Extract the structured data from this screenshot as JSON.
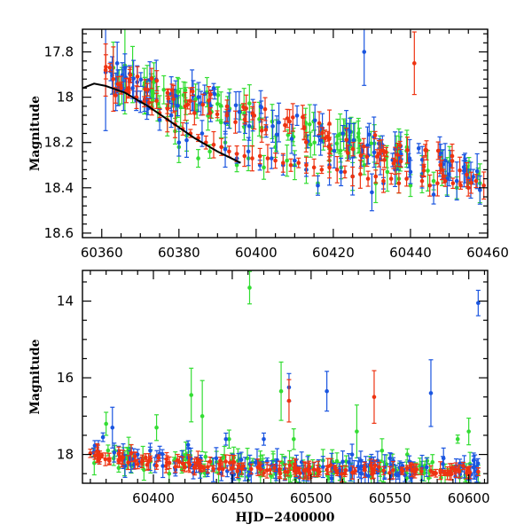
{
  "chart_data": [
    {
      "type": "scatter",
      "xlabel": "",
      "ylabel": "Magnitude",
      "xlim": [
        60355,
        60460
      ],
      "ylim": [
        18.62,
        17.7
      ],
      "y_inverted": true,
      "x_ticks": [
        "60360",
        "60380",
        "60400",
        "60420",
        "60440",
        "60460"
      ],
      "y_ticks": [
        "17.8",
        "18",
        "18.2",
        "18.4",
        "18.6"
      ],
      "colors": {
        "green": "#33dd33",
        "blue": "#1a55e0",
        "red": "#ee3311",
        "model": "#000000"
      },
      "series": [
        {
          "color": "green",
          "x": [
            60363,
            60366,
            60368,
            60371,
            60373,
            60375,
            60377,
            60379,
            60380,
            60382,
            60385,
            60388,
            60390,
            60392,
            60395,
            60398,
            60402,
            60405,
            60408,
            60410,
            60413,
            60416,
            60419,
            60422,
            60425,
            60428,
            60431,
            60434,
            60437,
            60440,
            60443,
            60446,
            60449,
            60452,
            60455,
            60458
          ],
          "y": [
            17.87,
            17.86,
            17.9,
            17.95,
            18.0,
            18.05,
            18.1,
            18.15,
            18.22,
            18.17,
            18.27,
            18.24,
            18.03,
            18.2,
            18.3,
            18.27,
            18.31,
            18.22,
            18.28,
            18.3,
            18.32,
            18.38,
            18.28,
            18.31,
            18.35,
            18.3,
            18.38,
            18.33,
            18.36,
            18.39,
            18.34,
            18.37,
            18.35,
            18.4,
            18.33,
            18.38
          ]
        },
        {
          "color": "blue",
          "x": [
            60361,
            60364,
            60366,
            60368,
            60370,
            60372,
            60375,
            60378,
            60380,
            60382,
            60386,
            60389,
            60392,
            60395,
            60398,
            60401,
            60404,
            60407,
            60410,
            60413,
            60416,
            60419,
            60422,
            60425,
            60428,
            60430,
            60433,
            60436,
            60440,
            60443,
            60446,
            60449,
            60452,
            60455,
            60458
          ],
          "y": [
            17.89,
            17.85,
            17.87,
            17.96,
            18.02,
            18.05,
            18.1,
            18.08,
            18.2,
            18.19,
            18.16,
            17.96,
            18.23,
            18.27,
            18.24,
            18.3,
            18.27,
            18.3,
            18.28,
            18.32,
            18.39,
            18.3,
            18.33,
            18.35,
            17.8,
            18.42,
            18.38,
            18.32,
            18.33,
            18.35,
            18.43,
            18.28,
            18.37,
            18.36,
            18.41
          ]
        },
        {
          "color": "red",
          "x": [
            60361,
            60363,
            60365,
            60367,
            60369,
            60371,
            60373,
            60375,
            60377,
            60379,
            60381,
            60383,
            60385,
            60387,
            60389,
            60391,
            60393,
            60395,
            60397,
            60399,
            60401,
            60403,
            60405,
            60407,
            60409,
            60411,
            60413,
            60415,
            60417,
            60419,
            60421,
            60423,
            60425,
            60427,
            60429,
            60431,
            60433,
            60435,
            60437,
            60439,
            60441,
            60443,
            60445,
            60447,
            60449,
            60451,
            60453,
            60455,
            60457,
            60459
          ],
          "y": [
            17.88,
            17.92,
            17.96,
            17.98,
            18.0,
            18.02,
            18.05,
            18.07,
            18.1,
            18.12,
            18.14,
            18.16,
            18.18,
            18.2,
            18.21,
            18.22,
            18.24,
            18.25,
            18.26,
            18.27,
            18.26,
            18.27,
            18.28,
            18.29,
            18.3,
            18.29,
            18.3,
            18.31,
            18.32,
            18.31,
            18.32,
            18.33,
            18.35,
            18.34,
            18.36,
            18.35,
            18.37,
            18.36,
            18.38,
            18.36,
            17.85,
            18.37,
            18.39,
            18.38,
            18.37,
            18.38,
            18.39,
            18.4,
            18.37,
            18.39
          ]
        },
        {
          "color": "model",
          "type": "line",
          "x": [
            60355,
            60358,
            60361,
            60366,
            60372,
            60378,
            60384,
            60390,
            60396
          ],
          "y": [
            17.96,
            17.94,
            17.95,
            17.98,
            18.04,
            18.11,
            18.18,
            18.24,
            18.29
          ]
        }
      ]
    },
    {
      "type": "scatter",
      "xlabel": "HJD−2400000",
      "ylabel": "Magnitude",
      "xlim": [
        60355,
        60612
      ],
      "ylim": [
        18.75,
        13.2
      ],
      "y_inverted": true,
      "x_ticks": [
        "60400",
        "60450",
        "60500",
        "60550",
        "60600"
      ],
      "y_ticks": [
        "14",
        "16",
        "18"
      ],
      "colors": {
        "green": "#33dd33",
        "blue": "#1a55e0",
        "red": "#ee3311"
      },
      "series": [
        {
          "color": "green",
          "x": [
            60362,
            60370,
            60378,
            60386,
            60394,
            60402,
            60410,
            60418,
            60424,
            60431,
            60440,
            60448,
            60456,
            60461,
            60468,
            60476,
            60481,
            60489,
            60497,
            60505,
            60513,
            60521,
            60529,
            60537,
            60545,
            60553,
            60561,
            60569,
            60577,
            60585,
            60593,
            60600,
            60606
          ],
          "y": [
            17.95,
            17.2,
            18.35,
            18.3,
            18.4,
            17.3,
            18.5,
            18.4,
            16.45,
            17.0,
            18.2,
            17.6,
            18.5,
            13.65,
            18.4,
            18.3,
            16.35,
            17.6,
            18.6,
            18.3,
            18.2,
            18.5,
            17.4,
            18.3,
            17.9,
            18.4,
            18.0,
            18.3,
            18.2,
            18.5,
            17.6,
            17.4,
            18.5
          ]
        },
        {
          "color": "blue",
          "x": [
            60362,
            60368,
            60374,
            60382,
            60390,
            60398,
            60406,
            60414,
            60422,
            60430,
            60438,
            60446,
            60454,
            60462,
            60470,
            60478,
            60486,
            60494,
            60502,
            60510,
            60518,
            60526,
            60534,
            60542,
            60550,
            60558,
            60566,
            60576,
            60584,
            60592,
            60600,
            60606
          ],
          "y": [
            17.95,
            17.55,
            17.3,
            18.3,
            18.0,
            17.9,
            18.3,
            18.4,
            17.75,
            18.1,
            18.4,
            17.6,
            18.3,
            18.5,
            17.6,
            18.4,
            16.25,
            18.2,
            18.4,
            16.35,
            18.4,
            18.0,
            18.3,
            18.4,
            18.1,
            18.3,
            18.4,
            16.4,
            18.1,
            18.3,
            18.5,
            14.05
          ]
        },
        {
          "color": "red",
          "x": [
            60360,
            60366,
            60372,
            60378,
            60384,
            60390,
            60396,
            60402,
            60408,
            60414,
            60420,
            60426,
            60432,
            60438,
            60444,
            60450,
            60456,
            60462,
            60468,
            60474,
            60480,
            60486,
            60492,
            60498,
            60504,
            60510,
            60516,
            60522,
            60528,
            60534,
            60540,
            60546,
            60552,
            60558,
            60564,
            60570,
            60576,
            60582,
            60588,
            60594,
            60600,
            60606
          ],
          "y": [
            17.97,
            18.05,
            18.12,
            18.17,
            18.21,
            18.25,
            18.27,
            18.29,
            18.3,
            18.32,
            18.33,
            18.35,
            18.36,
            18.37,
            18.38,
            18.35,
            18.37,
            18.38,
            18.39,
            18.4,
            18.38,
            16.6,
            18.4,
            18.39,
            18.41,
            18.4,
            18.42,
            18.41,
            18.43,
            18.4,
            16.5,
            18.42,
            18.41,
            18.43,
            18.42,
            18.44,
            18.43,
            18.42,
            18.45,
            18.44,
            18.43,
            18.45
          ]
        }
      ]
    }
  ]
}
